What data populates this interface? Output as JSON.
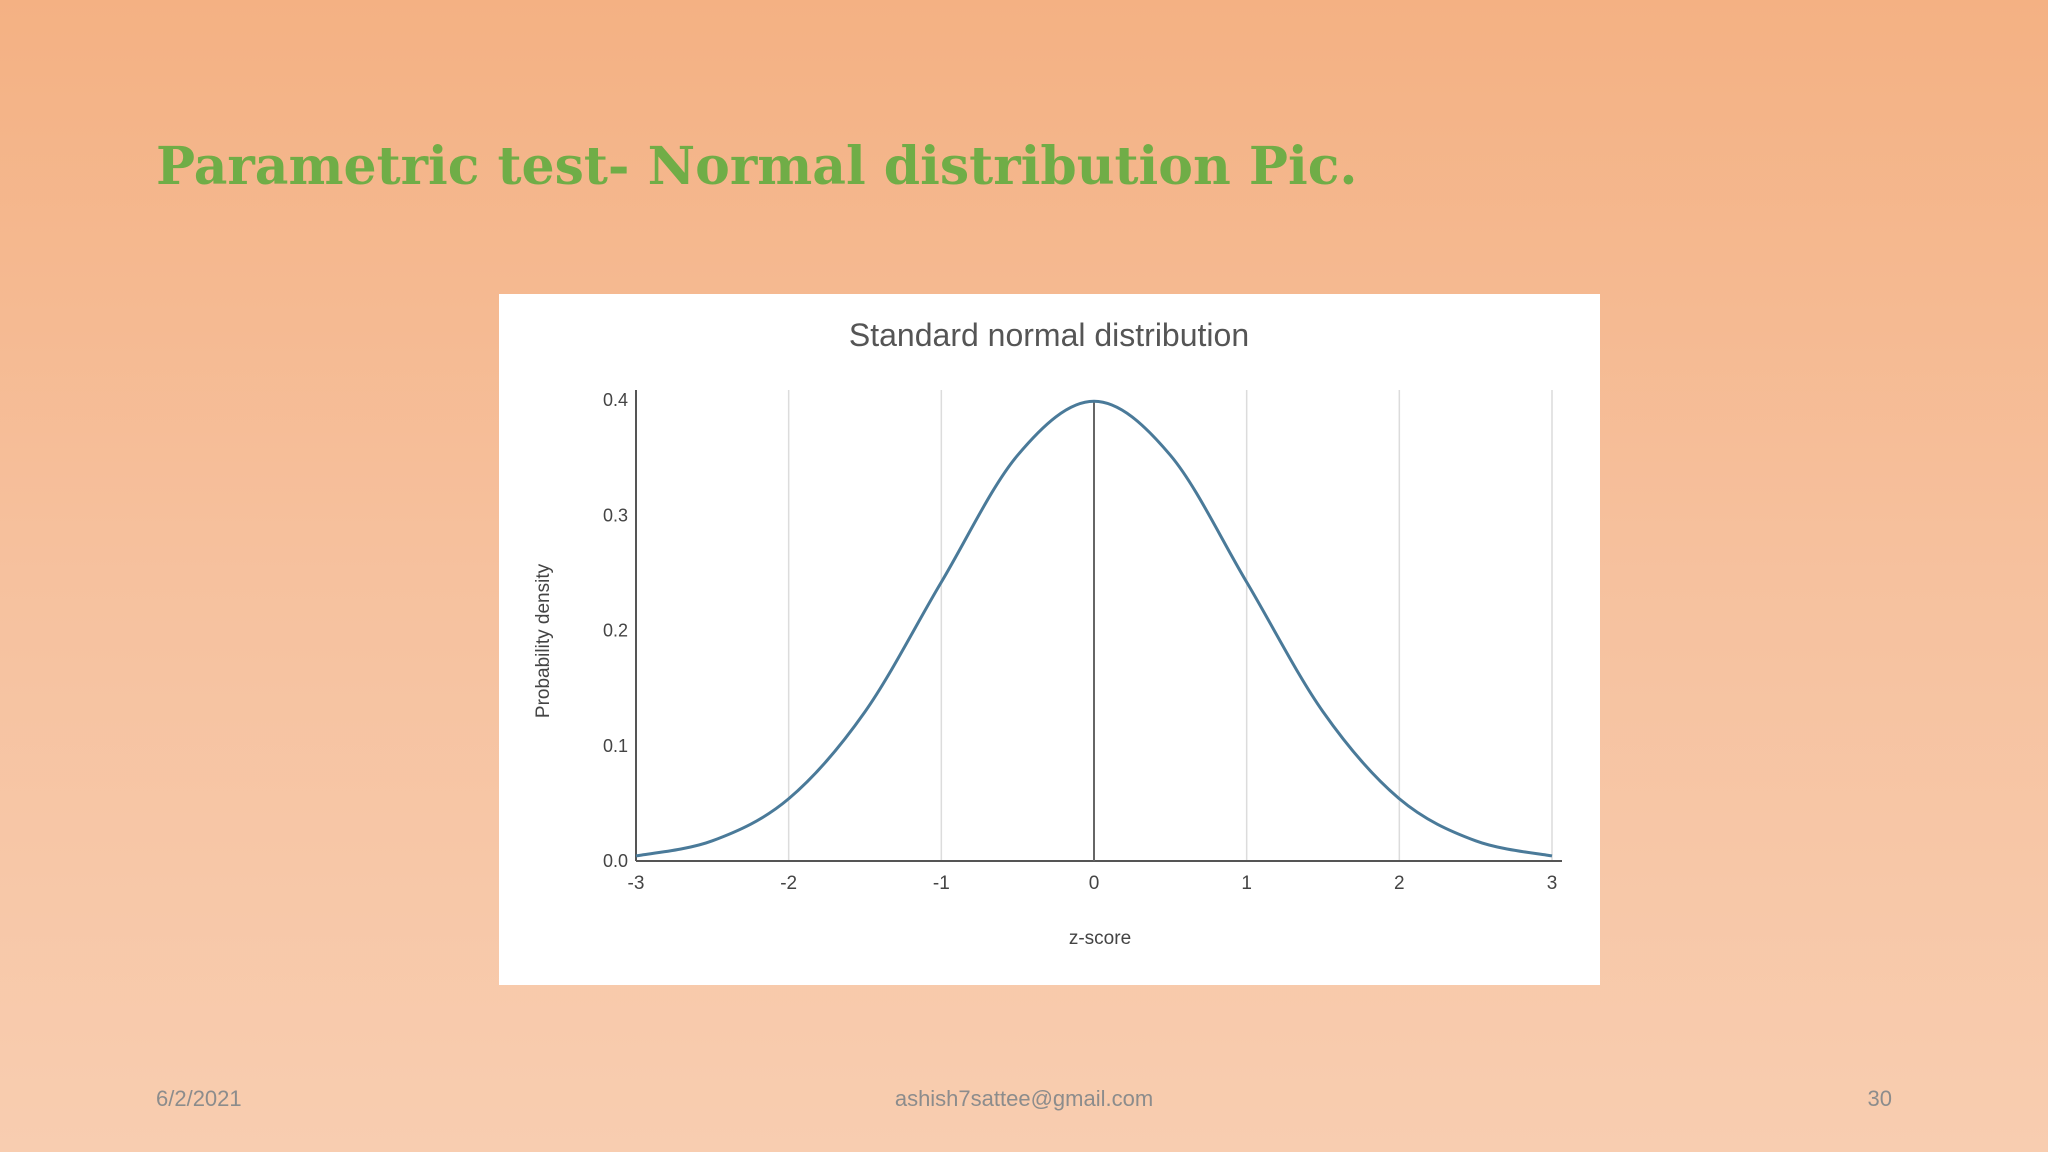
{
  "slide": {
    "title": "Parametric test- Normal distribution Pic.",
    "title_color": "#70ad47",
    "background_top": "#f4b183",
    "background_bottom": "#f8cdb0"
  },
  "footer": {
    "date": "6/2/2021",
    "email": "ashish7sattee@gmail.com",
    "page_number": "30"
  },
  "chart_data": {
    "type": "line",
    "title": "Standard normal distribution",
    "xlabel": "z-score",
    "ylabel": "Probability density",
    "xlim": [
      -3,
      3
    ],
    "ylim": [
      0,
      0.4
    ],
    "x_ticks": [
      "-3",
      "-2",
      "-1",
      "0",
      "1",
      "2",
      "3"
    ],
    "y_ticks": [
      "0.0",
      "0.1",
      "0.2",
      "0.3",
      "0.4"
    ],
    "grid": "vertical",
    "legend": "none",
    "series": [
      {
        "color": "#4a7a99",
        "x": [
          -3,
          -2.5,
          -2,
          -1.5,
          -1,
          -0.5,
          0,
          0.5,
          1,
          1.5,
          2,
          2.5,
          3
        ],
        "y": [
          0.0044,
          0.0175,
          0.054,
          0.1295,
          0.242,
          0.3521,
          0.3989,
          0.3521,
          0.242,
          0.1295,
          0.054,
          0.0175,
          0.0044
        ]
      }
    ]
  }
}
